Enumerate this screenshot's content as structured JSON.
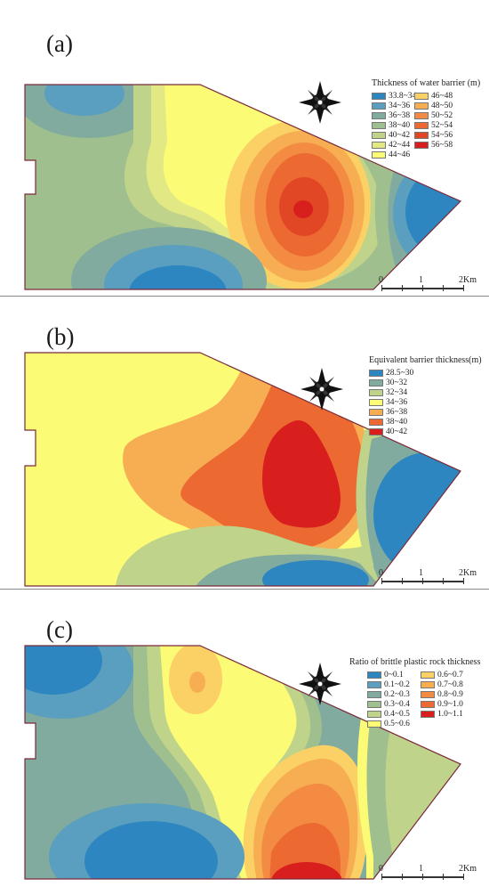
{
  "panels": [
    {
      "label": "(a)",
      "legend_title": "Thickness of water barrier (m)",
      "legend": [
        {
          "label": "33.8~34",
          "color": "#2e86c1"
        },
        {
          "label": "34~36",
          "color": "#5a9fbf"
        },
        {
          "label": "36~38",
          "color": "#80ab9e"
        },
        {
          "label": "38~40",
          "color": "#a0bf8e"
        },
        {
          "label": "40~42",
          "color": "#bfd48a"
        },
        {
          "label": "42~44",
          "color": "#e2e884"
        },
        {
          "label": "44~46",
          "color": "#fbfb76"
        },
        {
          "label": "46~48",
          "color": "#fbd165"
        },
        {
          "label": "48~50",
          "color": "#f7ad52"
        },
        {
          "label": "50~52",
          "color": "#f38c42"
        },
        {
          "label": "52~54",
          "color": "#ec6a32"
        },
        {
          "label": "54~56",
          "color": "#e24725"
        },
        {
          "label": "56~58",
          "color": "#d91e1e"
        }
      ],
      "scale": {
        "labels": [
          "0",
          "1",
          "2Km"
        ]
      }
    },
    {
      "label": "(b)",
      "legend_title": "Equivalent barrier thickness(m)",
      "legend": [
        {
          "label": "28.5~30",
          "color": "#2e86c1"
        },
        {
          "label": "30~32",
          "color": "#80ab9e"
        },
        {
          "label": "32~34",
          "color": "#bfd48a"
        },
        {
          "label": "34~36",
          "color": "#fbfb76"
        },
        {
          "label": "36~38",
          "color": "#f7ad52"
        },
        {
          "label": "38~40",
          "color": "#ec6a32"
        },
        {
          "label": "40~42",
          "color": "#d91e1e"
        }
      ],
      "scale": {
        "labels": [
          "0",
          "1",
          "2Km"
        ]
      }
    },
    {
      "label": "(c)",
      "legend_title": "Ratio of brittle plastic rock thickness",
      "legend": [
        {
          "label": "0~0.1",
          "color": "#2e86c1"
        },
        {
          "label": "0.1~0.2",
          "color": "#5a9fbf"
        },
        {
          "label": "0.2~0.3",
          "color": "#80ab9e"
        },
        {
          "label": "0.3~0.4",
          "color": "#a0bf8e"
        },
        {
          "label": "0.4~0.5",
          "color": "#bfd48a"
        },
        {
          "label": "0.5~0.6",
          "color": "#fbfb76"
        },
        {
          "label": "0.6~0.7",
          "color": "#fbd165"
        },
        {
          "label": "0.7~0.8",
          "color": "#f7ad52"
        },
        {
          "label": "0.8~0.9",
          "color": "#f38c42"
        },
        {
          "label": "0.9~1.0",
          "color": "#ec6a32"
        },
        {
          "label": "1.0~1.1",
          "color": "#d91e1e"
        }
      ],
      "scale": {
        "labels": [
          "0",
          "1",
          "2Km"
        ]
      }
    }
  ]
}
